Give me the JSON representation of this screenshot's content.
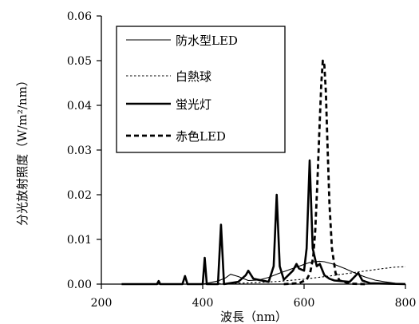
{
  "chart_data": {
    "type": "line",
    "xlabel": "波長（nm）",
    "ylabel": "分光放射照度（W/m²/nm）",
    "xlim": [
      200,
      800
    ],
    "ylim": [
      0,
      0.06
    ],
    "xticks": [
      "200",
      "400",
      "600",
      "800"
    ],
    "yticks": [
      "0.00",
      "0.01",
      "0.02",
      "0.03",
      "0.04",
      "0.05",
      "0.06"
    ],
    "grid": false,
    "legend_position": "top-right",
    "series": [
      {
        "name": "防水型LED",
        "style": "solid-thin",
        "color": "#000000",
        "x": [
          400,
          430,
          445,
          455,
          470,
          490,
          510,
          530,
          550,
          570,
          590,
          610,
          620,
          630,
          640,
          660,
          680,
          700,
          720,
          740,
          760,
          780,
          800
        ],
        "y": [
          0.0,
          0.0007,
          0.0014,
          0.0022,
          0.0017,
          0.0008,
          0.0009,
          0.0015,
          0.0024,
          0.0032,
          0.004,
          0.0048,
          0.005,
          0.0051,
          0.005,
          0.0044,
          0.0035,
          0.0025,
          0.0016,
          0.0009,
          0.0005,
          0.0002,
          0.0001
        ]
      },
      {
        "name": "白熱球",
        "style": "dotted",
        "color": "#000000",
        "x": [
          400,
          450,
          500,
          550,
          600,
          650,
          700,
          750,
          780,
          800
        ],
        "y": [
          0.0,
          0.0001,
          0.0003,
          0.0006,
          0.0011,
          0.0018,
          0.0026,
          0.0034,
          0.0038,
          0.0039
        ]
      },
      {
        "name": "蛍光灯",
        "style": "solid-thick",
        "color": "#000000",
        "x": [
          240,
          310,
          313,
          316,
          360,
          365,
          370,
          400,
          404,
          408,
          430,
          436,
          442,
          470,
          485,
          490,
          500,
          530,
          540,
          546,
          552,
          560,
          578,
          585,
          590,
          600,
          605,
          611,
          617,
          625,
          631,
          640,
          650,
          660,
          690,
          707,
          715,
          730,
          800
        ],
        "y": [
          0.0,
          0.0,
          0.0007,
          0.0,
          0.0,
          0.0018,
          0.0,
          0.0,
          0.0059,
          0.0,
          0.0,
          0.0133,
          0.0,
          0.0005,
          0.002,
          0.003,
          0.0012,
          0.0005,
          0.004,
          0.02,
          0.004,
          0.001,
          0.003,
          0.0045,
          0.0035,
          0.003,
          0.008,
          0.0277,
          0.008,
          0.004,
          0.0045,
          0.002,
          0.0012,
          0.0008,
          0.0005,
          0.0025,
          0.0008,
          0.0002,
          0.0
        ]
      },
      {
        "name": "赤色LED",
        "style": "dashed-thick",
        "color": "#000000",
        "x": [
          560,
          590,
          605,
          612,
          618,
          622,
          626,
          630,
          634,
          637,
          640,
          643,
          646,
          650,
          655,
          662,
          670,
          690,
          720
        ],
        "y": [
          0.0,
          0.0002,
          0.001,
          0.0025,
          0.006,
          0.012,
          0.022,
          0.034,
          0.045,
          0.05,
          0.049,
          0.043,
          0.032,
          0.018,
          0.008,
          0.0025,
          0.0008,
          0.0001,
          0.0
        ]
      }
    ]
  }
}
